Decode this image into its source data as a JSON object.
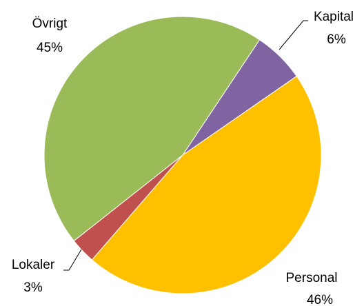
{
  "chart_data": {
    "type": "pie",
    "categories": [
      "Kapital",
      "Personal",
      "Lokaler",
      "Övrigt"
    ],
    "values": [
      6,
      46,
      3,
      45
    ],
    "value_labels": [
      "6%",
      "46%",
      "3%",
      "45%"
    ],
    "colors": [
      "#8064a2",
      "#ffc000",
      "#c0504d",
      "#9bbb59"
    ]
  }
}
